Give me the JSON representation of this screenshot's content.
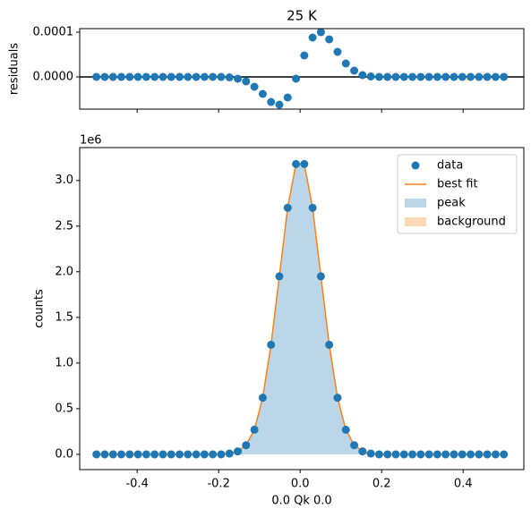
{
  "chart_data": [
    {
      "type": "scatter",
      "title": "25 K",
      "ylabel": "residuals",
      "x": [
        -0.5,
        -0.4796,
        -0.4592,
        -0.4388,
        -0.4184,
        -0.398,
        -0.3776,
        -0.3571,
        -0.3367,
        -0.3163,
        -0.2959,
        -0.2755,
        -0.2551,
        -0.2347,
        -0.2143,
        -0.1939,
        -0.1735,
        -0.1531,
        -0.1327,
        -0.1122,
        -0.0918,
        -0.0714,
        -0.051,
        -0.0306,
        -0.0102,
        0.0102,
        0.0306,
        0.051,
        0.0714,
        0.0918,
        0.1122,
        0.1327,
        0.1531,
        0.1735,
        0.1939,
        0.2143,
        0.2347,
        0.2551,
        0.2755,
        0.2959,
        0.3163,
        0.3367,
        0.3571,
        0.3776,
        0.398,
        0.4184,
        0.4388,
        0.4592,
        0.4796,
        0.5
      ],
      "series": [
        {
          "color": "#1f77b4",
          "kind": "scatter",
          "values": [
            0,
            0,
            0,
            0,
            0,
            0,
            0,
            0,
            0,
            0,
            0,
            0,
            0,
            0,
            0,
            0,
            -1e-06,
            -4e-06,
            -1e-05,
            -2.2e-05,
            -3.8e-05,
            -5.6e-05,
            -6.2e-05,
            -4.6e-05,
            -4e-06,
            4.8e-05,
            8.8e-05,
            0.0001,
            8.4e-05,
            5.6e-05,
            3e-05,
            1.4e-05,
            4e-06,
            1e-06,
            0,
            0,
            0,
            0,
            0,
            0,
            0,
            0,
            0,
            0,
            0,
            0,
            0,
            0,
            0,
            0
          ]
        }
      ],
      "hline": 0,
      "hline_color": "#000000",
      "xlim": [
        -0.541,
        0.549
      ],
      "ylim": [
        -7.2e-05,
        0.000108
      ],
      "xticks": [
        -0.4,
        -0.2,
        0.0,
        0.2,
        0.4
      ],
      "yticks": [
        {
          "value": 0,
          "label": "0.0000"
        },
        {
          "value": 0.0001,
          "label": "0.0001"
        }
      ]
    },
    {
      "type": "fit",
      "xlabel": "0.0 Qk 0.0",
      "ylabel": "counts",
      "offset_label": "1e6",
      "legend": "upper right",
      "x": [
        -0.5,
        -0.4796,
        -0.4592,
        -0.4388,
        -0.4184,
        -0.398,
        -0.3776,
        -0.3571,
        -0.3367,
        -0.3163,
        -0.2959,
        -0.2755,
        -0.2551,
        -0.2347,
        -0.2143,
        -0.1939,
        -0.1735,
        -0.1531,
        -0.1327,
        -0.1122,
        -0.0918,
        -0.0714,
        -0.051,
        -0.0306,
        -0.0102,
        0.0102,
        0.0306,
        0.051,
        0.0714,
        0.0918,
        0.1122,
        0.1327,
        0.1531,
        0.1735,
        0.1939,
        0.2143,
        0.2347,
        0.2551,
        0.2755,
        0.2959,
        0.3163,
        0.3367,
        0.3571,
        0.3776,
        0.398,
        0.4184,
        0.4388,
        0.4592,
        0.4796,
        0.5
      ],
      "series": [
        {
          "name": "data",
          "color": "#1f77b4",
          "kind": "scatter",
          "values": [
            0,
            0,
            0,
            0,
            0,
            0,
            0,
            0,
            0,
            0,
            0,
            0,
            0,
            0,
            0,
            0,
            0.009,
            0.033,
            0.1,
            0.27,
            0.62,
            1.2,
            1.95,
            2.7,
            3.18,
            3.18,
            2.7,
            1.95,
            1.2,
            0.62,
            0.27,
            0.1,
            0.033,
            0.009,
            0,
            0,
            0,
            0,
            0,
            0,
            0,
            0,
            0,
            0,
            0,
            0,
            0,
            0,
            0,
            0
          ]
        },
        {
          "name": "best fit",
          "color": "#ff7f0e",
          "kind": "line",
          "values": [
            0,
            0,
            0,
            0,
            0,
            0,
            0,
            0,
            0,
            0,
            0,
            0,
            0,
            0,
            0,
            0,
            0.009,
            0.033,
            0.1,
            0.27,
            0.62,
            1.2,
            1.95,
            2.7,
            3.18,
            3.18,
            2.7,
            1.95,
            1.2,
            0.62,
            0.27,
            0.1,
            0.033,
            0.009,
            0,
            0,
            0,
            0,
            0,
            0,
            0,
            0,
            0,
            0,
            0,
            0,
            0,
            0,
            0,
            0
          ]
        },
        {
          "name": "peak",
          "color": "#1f77b4",
          "kind": "area",
          "values": [
            0,
            0,
            0,
            0,
            0,
            0,
            0,
            0,
            0,
            0,
            0,
            0,
            0,
            0,
            0,
            0,
            0.009,
            0.033,
            0.1,
            0.27,
            0.62,
            1.2,
            1.95,
            2.7,
            3.18,
            3.18,
            2.7,
            1.95,
            1.2,
            0.62,
            0.27,
            0.1,
            0.033,
            0.009,
            0,
            0,
            0,
            0,
            0,
            0,
            0,
            0,
            0,
            0,
            0,
            0,
            0,
            0,
            0,
            0
          ]
        },
        {
          "name": "background",
          "color": "#ff7f0e",
          "kind": "area",
          "values": [
            0,
            0,
            0,
            0,
            0,
            0,
            0,
            0,
            0,
            0,
            0,
            0,
            0,
            0,
            0,
            0,
            0,
            0,
            0,
            0,
            0,
            0,
            0,
            0,
            0,
            0,
            0,
            0,
            0,
            0,
            0,
            0,
            0,
            0,
            0,
            0,
            0,
            0,
            0,
            0,
            0,
            0,
            0,
            0,
            0,
            0,
            0,
            0,
            0,
            0
          ]
        }
      ],
      "xlim": [
        -0.541,
        0.549
      ],
      "ylim": [
        -0.167,
        3.36
      ],
      "xticks": [
        -0.4,
        -0.2,
        {
          "value": 0,
          "label": "0.0"
        },
        0.2,
        0.4
      ],
      "yticks": [
        {
          "value": 0,
          "label": "0.0"
        },
        0.5,
        {
          "value": 1,
          "label": "1.0"
        },
        1.5,
        {
          "value": 2,
          "label": "2.0"
        },
        2.5,
        {
          "value": 3,
          "label": "3.0"
        }
      ]
    }
  ]
}
